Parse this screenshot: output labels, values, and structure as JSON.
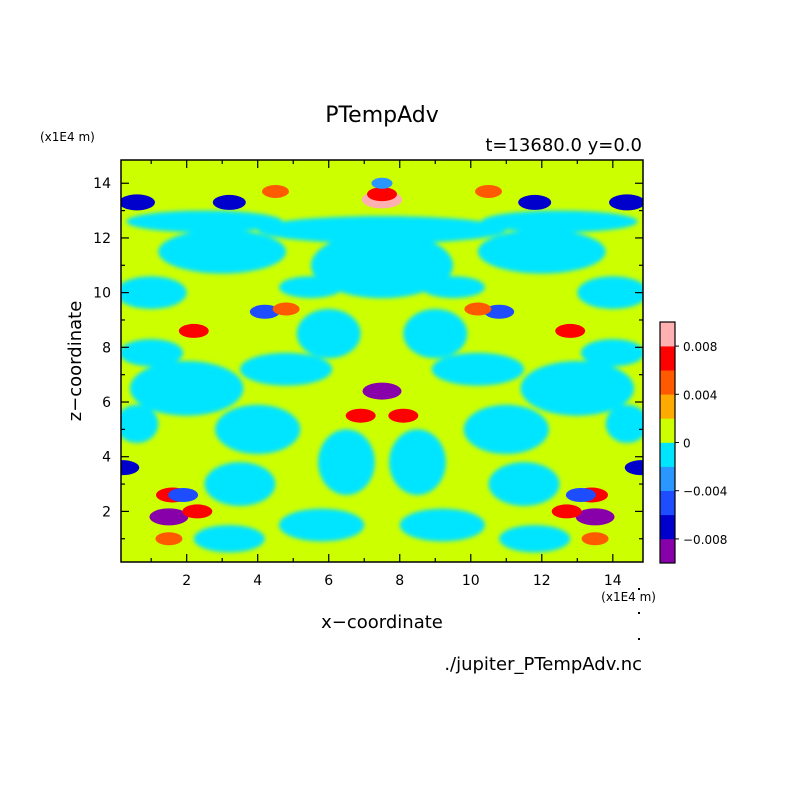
{
  "chart_data": {
    "type": "heatmap",
    "title": "PTempAdv",
    "subtitle": "t=13680.0 y=0.0",
    "xlabel": "x−coordinate",
    "ylabel": "z−coordinate",
    "x_unit": "(x1E4 m)",
    "z_unit": "(x1E4 m)",
    "footer": "./jupiter_PTempAdv.nc",
    "xlim": [
      0.15,
      14.85
    ],
    "ylim": [
      0.15,
      14.85
    ],
    "x_ticks": [
      2,
      4,
      6,
      8,
      10,
      12,
      14
    ],
    "y_ticks": [
      2,
      4,
      6,
      8,
      10,
      12,
      14
    ],
    "grid": false,
    "colorbar": {
      "placement": "right",
      "levels": [
        -0.01,
        -0.008,
        -0.006,
        -0.004,
        -0.002,
        0,
        0.002,
        0.004,
        0.006,
        0.008,
        0.01
      ],
      "colors": [
        "#8800aa",
        "#0000cc",
        "#1e4dff",
        "#2a96ff",
        "#00e5ff",
        "#ccff00",
        "#ffaa00",
        "#ff5a00",
        "#ff0000",
        "#ffb0b0"
      ],
      "tick_labels": [
        "0.008",
        "0.004",
        "0",
        "−0.004",
        "−0.008"
      ],
      "tick_values": [
        0.008,
        0.004,
        0,
        -0.004,
        -0.008
      ]
    },
    "field_features": [
      {
        "x": 7.5,
        "z": 13.4,
        "value": 0.0095
      },
      {
        "x": 7.5,
        "z": 13.6,
        "value": 0.006
      },
      {
        "x": 3.2,
        "z": 13.3,
        "value": -0.007
      },
      {
        "x": 11.8,
        "z": 13.3,
        "value": -0.007
      },
      {
        "x": 0.6,
        "z": 13.3,
        "value": -0.008
      },
      {
        "x": 14.4,
        "z": 13.3,
        "value": -0.008
      },
      {
        "x": 4.5,
        "z": 13.7,
        "value": 0.005
      },
      {
        "x": 10.5,
        "z": 13.7,
        "value": 0.005
      },
      {
        "x": 7.5,
        "z": 14.0,
        "value": -0.003
      },
      {
        "x": 2.2,
        "z": 8.6,
        "value": 0.006
      },
      {
        "x": 12.8,
        "z": 8.6,
        "value": 0.006
      },
      {
        "x": 4.2,
        "z": 9.3,
        "value": -0.006
      },
      {
        "x": 10.8,
        "z": 9.3,
        "value": -0.006
      },
      {
        "x": 4.8,
        "z": 9.4,
        "value": 0.005
      },
      {
        "x": 10.2,
        "z": 9.4,
        "value": 0.005
      },
      {
        "x": 7.5,
        "z": 6.4,
        "value": -0.009
      },
      {
        "x": 6.9,
        "z": 5.5,
        "value": 0.006
      },
      {
        "x": 8.1,
        "z": 5.5,
        "value": 0.006
      },
      {
        "x": 1.6,
        "z": 2.6,
        "value": 0.007
      },
      {
        "x": 13.4,
        "z": 2.6,
        "value": 0.007
      },
      {
        "x": 1.5,
        "z": 1.8,
        "value": -0.009
      },
      {
        "x": 13.5,
        "z": 1.8,
        "value": -0.009
      },
      {
        "x": 2.3,
        "z": 2.0,
        "value": 0.006
      },
      {
        "x": 12.7,
        "z": 2.0,
        "value": 0.006
      },
      {
        "x": 1.9,
        "z": 2.6,
        "value": -0.006
      },
      {
        "x": 13.1,
        "z": 2.6,
        "value": -0.006
      },
      {
        "x": 0.2,
        "z": 3.6,
        "value": -0.007
      },
      {
        "x": 14.8,
        "z": 3.6,
        "value": -0.007
      },
      {
        "x": 1.5,
        "z": 1.0,
        "value": 0.005
      },
      {
        "x": 13.5,
        "z": 1.0,
        "value": 0.005
      }
    ]
  }
}
